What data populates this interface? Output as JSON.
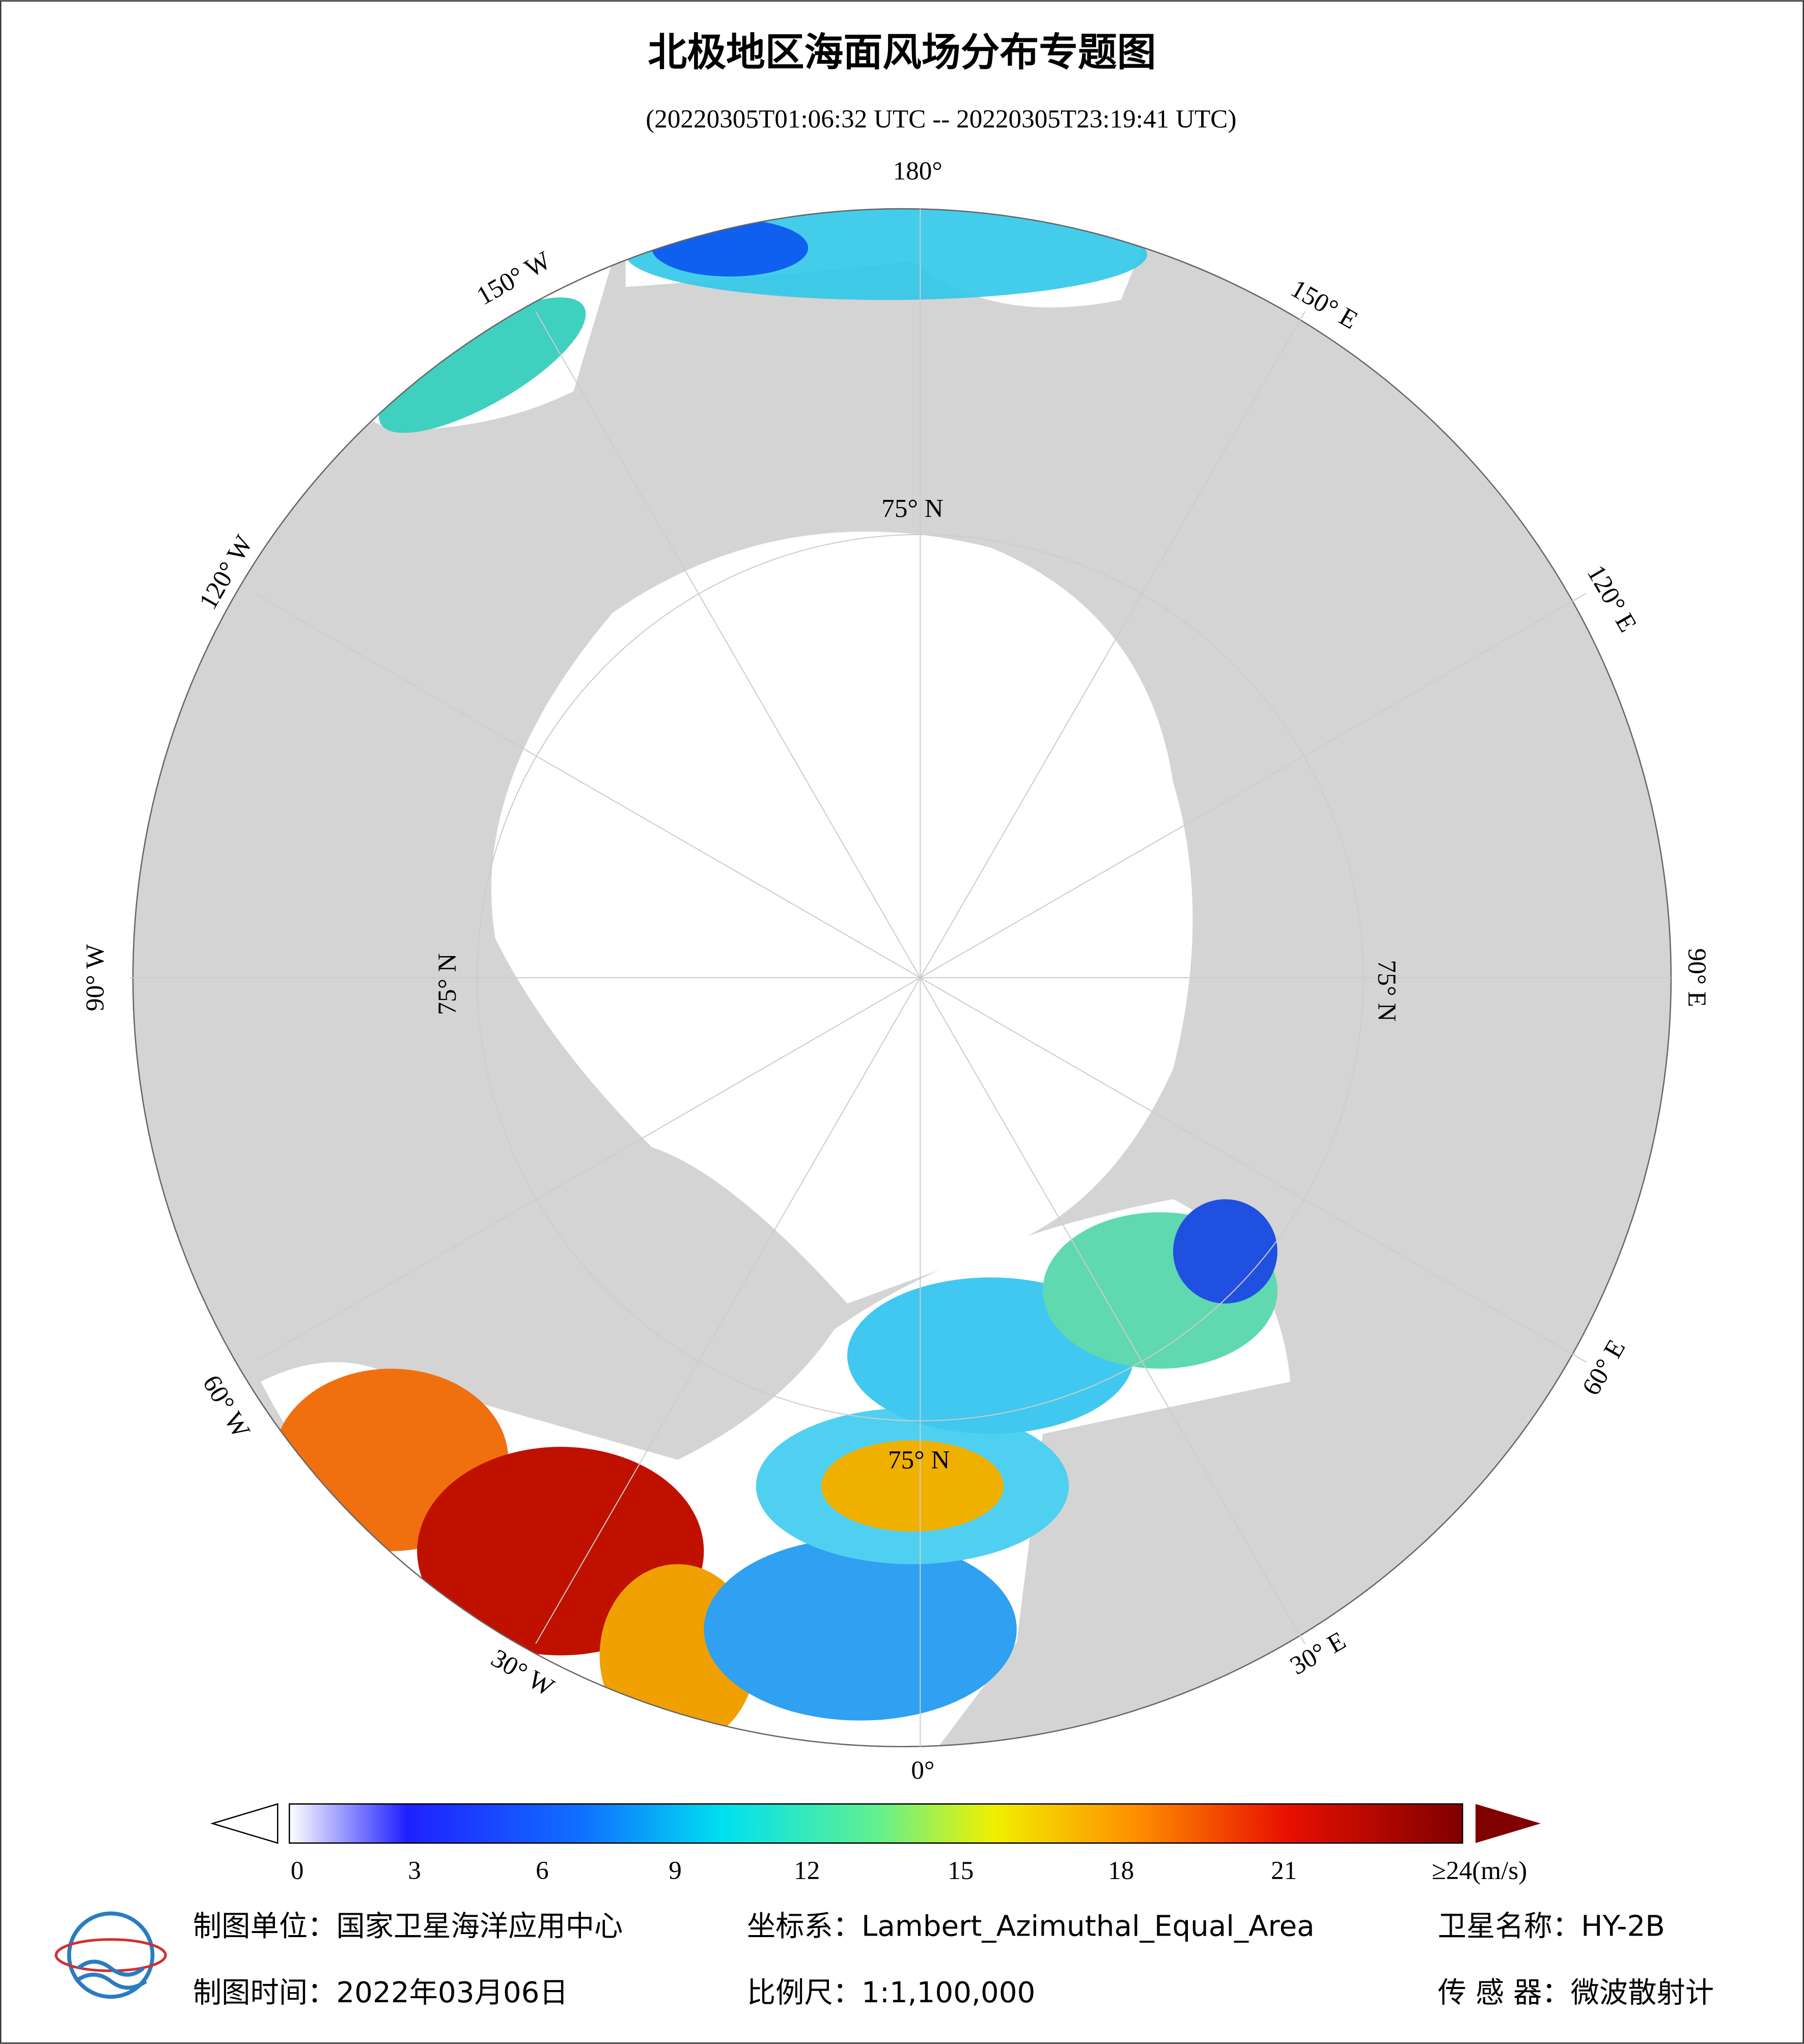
{
  "header": {
    "title": "北极地区海面风场分布专题图",
    "subtitle": "(20220305T01:06:32 UTC -- 20220305T23:19:41 UTC)"
  },
  "map": {
    "lon_labels": [
      "180°",
      "150° W",
      "120° W",
      "90° W",
      "60° W",
      "30° W",
      "0°",
      "30° E",
      "60° E",
      "90° E",
      "120° E",
      "150° E"
    ],
    "lat_label": "75° N"
  },
  "colorbar": {
    "ticks": [
      0,
      3,
      6,
      9,
      12,
      15,
      18,
      21,
      {
        "value": 24,
        "label": "≥24(m/s)"
      }
    ]
  },
  "footer": {
    "unit": "制图单位：国家卫星海洋应用中心",
    "date": "制图时间：2022年03月06日",
    "crs": "坐标系：Lambert_Azimuthal_Equal_Area",
    "scale": "比例尺：1:1,100,000",
    "satellite": "卫星名称：HY-2B",
    "sensor": "传 感 器：微波散射计"
  }
}
